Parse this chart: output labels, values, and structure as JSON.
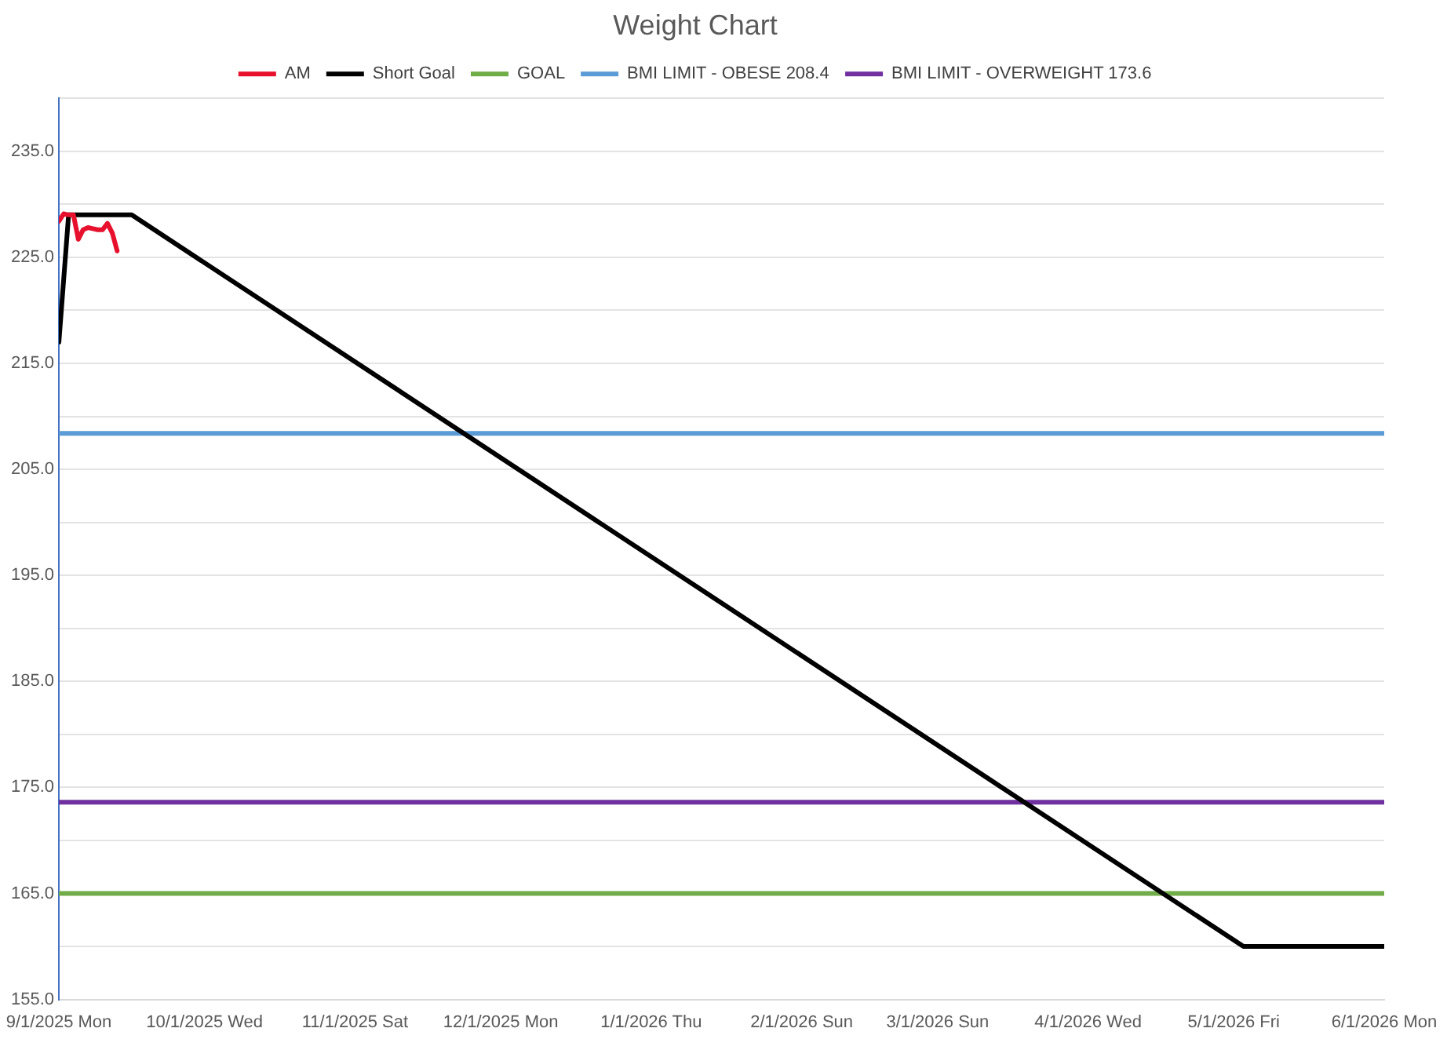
{
  "chart_data": {
    "type": "line",
    "title": "Weight Chart",
    "legend": "top",
    "grid": "y",
    "marker": "none",
    "line_style": "solid",
    "xlim": [
      "2025-09-01",
      "2026-06-01"
    ],
    "xticks": [
      {
        "value": "2025-09-01",
        "label": "9/1/2025 Mon"
      },
      {
        "value": "2025-10-01",
        "label": "10/1/2025 Wed"
      },
      {
        "value": "2025-11-01",
        "label": "11/1/2025 Sat"
      },
      {
        "value": "2025-12-01",
        "label": "12/1/2025 Mon"
      },
      {
        "value": "2026-01-01",
        "label": "1/1/2026 Thu"
      },
      {
        "value": "2026-02-01",
        "label": "2/1/2026 Sun"
      },
      {
        "value": "2026-03-01",
        "label": "3/1/2026 Sun"
      },
      {
        "value": "2026-04-01",
        "label": "4/1/2026 Wed"
      },
      {
        "value": "2026-05-01",
        "label": "5/1/2026 Fri"
      },
      {
        "value": "2026-06-01",
        "label": "6/1/2026 Mon"
      }
    ],
    "ylim": [
      155,
      240
    ],
    "yticks": [
      {
        "value": 155,
        "label": "155.0"
      },
      {
        "value": 160,
        "label": null
      },
      {
        "value": 165,
        "label": "165.0"
      },
      {
        "value": 170,
        "label": null
      },
      {
        "value": 175,
        "label": "175.0"
      },
      {
        "value": 180,
        "label": null
      },
      {
        "value": 185,
        "label": "185.0"
      },
      {
        "value": 190,
        "label": null
      },
      {
        "value": 195,
        "label": "195.0"
      },
      {
        "value": 200,
        "label": null
      },
      {
        "value": 205,
        "label": "205.0"
      },
      {
        "value": 210,
        "label": null
      },
      {
        "value": 215,
        "label": "215.0"
      },
      {
        "value": 220,
        "label": null
      },
      {
        "value": 225,
        "label": "225.0"
      },
      {
        "value": 230,
        "label": null
      },
      {
        "value": 235,
        "label": "235.0"
      },
      {
        "value": 240,
        "label": null
      }
    ],
    "series": [
      {
        "name": "AM",
        "color": "#e8112d",
        "x": [
          "2025-09-01",
          "2025-09-02",
          "2025-09-03",
          "2025-09-04",
          "2025-09-05",
          "2025-09-06",
          "2025-09-07",
          "2025-09-08",
          "2025-09-09",
          "2025-09-10",
          "2025-09-11",
          "2025-09-12",
          "2025-09-13"
        ],
        "values": [
          228.4,
          229.1,
          229.0,
          229.0,
          226.7,
          227.6,
          227.8,
          227.7,
          227.6,
          227.6,
          228.2,
          227.3,
          225.6
        ]
      },
      {
        "name": "Short Goal",
        "color": "#000000",
        "x": [
          "2025-09-01",
          "2025-09-03",
          "2025-09-16",
          "2026-05-03",
          "2026-06-01"
        ],
        "values": [
          217,
          229,
          229,
          160,
          160
        ]
      },
      {
        "name": "GOAL",
        "color": "#70ad47",
        "x": [
          "2025-09-01",
          "2026-06-01"
        ],
        "values": [
          165,
          165
        ]
      },
      {
        "name": "BMI LIMIT - OBESE 208.4",
        "color": "#5b9bd5",
        "x": [
          "2025-09-01",
          "2026-06-01"
        ],
        "values": [
          208.4,
          208.4
        ]
      },
      {
        "name": "BMI LIMIT - OVERWEIGHT 173.6",
        "color": "#7030a0",
        "x": [
          "2025-09-01",
          "2026-06-01"
        ],
        "values": [
          173.6,
          173.6
        ]
      }
    ]
  }
}
